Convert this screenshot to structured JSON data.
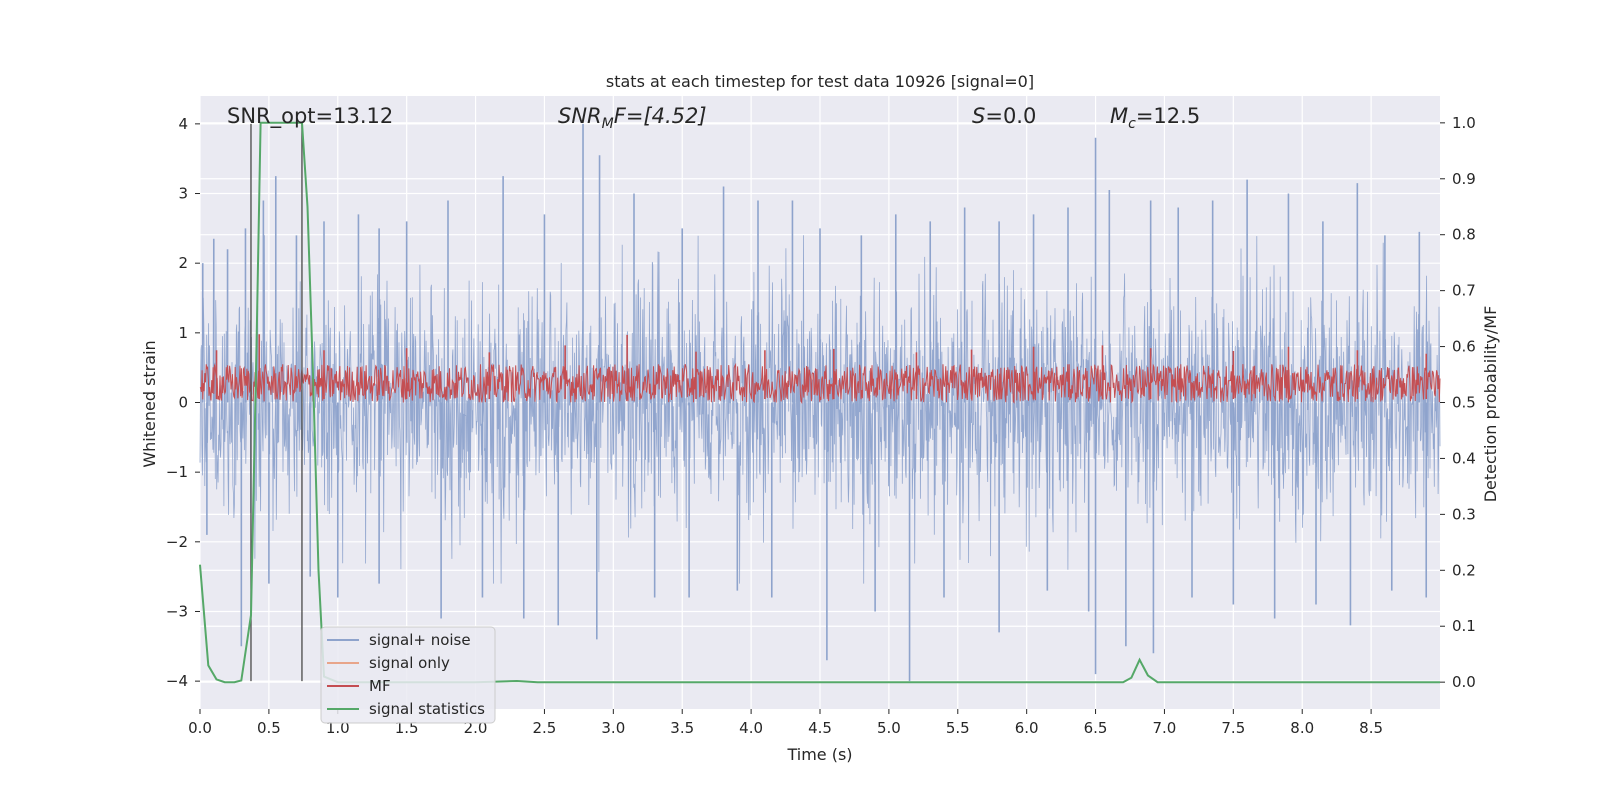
{
  "chart_data": {
    "type": "line",
    "title": "stats at each timestep for test data 10926 [signal=0]",
    "xlabel": "Time (s)",
    "ylabel": "Whitened strain",
    "ylabel_right": "Detection probability/MF",
    "xlim": [
      0,
      9.0
    ],
    "ylim": [
      -4.4,
      4.4
    ],
    "ylim_right": [
      -0.048,
      1.048
    ],
    "xticks": [
      0.0,
      0.5,
      1.0,
      1.5,
      2.0,
      2.5,
      3.0,
      3.5,
      4.0,
      4.5,
      5.0,
      5.5,
      6.0,
      6.5,
      7.0,
      7.5,
      8.0,
      8.5
    ],
    "xtick_labels": [
      "0.0",
      "0.5",
      "1.0",
      "1.5",
      "2.0",
      "2.5",
      "3.0",
      "3.5",
      "4.0",
      "4.5",
      "5.0",
      "5.5",
      "6.0",
      "6.5",
      "7.0",
      "7.5",
      "8.0",
      "8.5"
    ],
    "yticks": [
      -4,
      -3,
      -2,
      -1,
      0,
      1,
      2,
      3,
      4
    ],
    "ytick_labels": [
      "−4",
      "−3",
      "−2",
      "−1",
      "0",
      "1",
      "2",
      "3",
      "4"
    ],
    "yticks_right": [
      0.0,
      0.1,
      0.2,
      0.3,
      0.4,
      0.5,
      0.6,
      0.7,
      0.8,
      0.9,
      1.0
    ],
    "ytick_labels_right": [
      "0.0",
      "0.1",
      "0.2",
      "0.3",
      "0.4",
      "0.5",
      "0.6",
      "0.7",
      "0.8",
      "0.9",
      "1.0"
    ],
    "grid": true,
    "legend_position": "lower-left",
    "annotations": {
      "snr_opt": "SNR_opt=13.12",
      "snr_mf_main": "SNR",
      "snr_mf_sub": "M",
      "snr_mf_rest": "F=[4.52]",
      "s_var": "S",
      "s_value": "=0.0",
      "mc_var": "M",
      "mc_sub": "c",
      "mc_value": "=12.5"
    },
    "vertical_markers": [
      0.37,
      0.74
    ],
    "series": [
      {
        "name": "signal+ noise",
        "axis": "left",
        "color": "#8ea3cc",
        "peaks_positive": [
          [
            0.02,
            2.0
          ],
          [
            0.1,
            2.35
          ],
          [
            0.2,
            2.2
          ],
          [
            0.33,
            2.5
          ],
          [
            0.46,
            2.9
          ],
          [
            0.55,
            3.25
          ],
          [
            0.7,
            2.4
          ],
          [
            0.9,
            2.6
          ],
          [
            1.15,
            2.7
          ],
          [
            1.3,
            2.5
          ],
          [
            1.5,
            2.6
          ],
          [
            1.8,
            2.9
          ],
          [
            2.2,
            3.25
          ],
          [
            2.5,
            2.7
          ],
          [
            2.78,
            4.0
          ],
          [
            2.9,
            3.55
          ],
          [
            3.15,
            3.0
          ],
          [
            3.5,
            2.5
          ],
          [
            3.8,
            3.1
          ],
          [
            4.05,
            2.9
          ],
          [
            4.3,
            2.9
          ],
          [
            4.5,
            2.5
          ],
          [
            4.8,
            2.4
          ],
          [
            5.05,
            2.7
          ],
          [
            5.3,
            2.6
          ],
          [
            5.55,
            2.8
          ],
          [
            5.8,
            2.6
          ],
          [
            6.05,
            2.7
          ],
          [
            6.3,
            2.8
          ],
          [
            6.5,
            3.8
          ],
          [
            6.6,
            3.05
          ],
          [
            6.9,
            2.9
          ],
          [
            7.1,
            2.8
          ],
          [
            7.35,
            2.9
          ],
          [
            7.6,
            3.2
          ],
          [
            7.9,
            3.0
          ],
          [
            8.15,
            2.6
          ],
          [
            8.4,
            3.15
          ],
          [
            8.6,
            2.4
          ],
          [
            8.85,
            2.45
          ]
        ],
        "peaks_negative": [
          [
            0.05,
            -1.9
          ],
          [
            0.3,
            -3.5
          ],
          [
            0.5,
            -2.6
          ],
          [
            0.8,
            -2.5
          ],
          [
            1.0,
            -2.8
          ],
          [
            1.3,
            -2.6
          ],
          [
            1.75,
            -3.1
          ],
          [
            2.05,
            -2.8
          ],
          [
            2.35,
            -3.1
          ],
          [
            2.6,
            -3.2
          ],
          [
            2.88,
            -3.4
          ],
          [
            3.3,
            -2.8
          ],
          [
            3.55,
            -2.8
          ],
          [
            3.9,
            -2.7
          ],
          [
            4.15,
            -2.8
          ],
          [
            4.55,
            -3.7
          ],
          [
            4.9,
            -3.0
          ],
          [
            5.15,
            -4.0
          ],
          [
            5.4,
            -2.8
          ],
          [
            5.8,
            -3.3
          ],
          [
            6.15,
            -2.7
          ],
          [
            6.45,
            -3.0
          ],
          [
            6.5,
            -3.9
          ],
          [
            6.72,
            -3.5
          ],
          [
            6.92,
            -3.6
          ],
          [
            7.2,
            -2.8
          ],
          [
            7.5,
            -2.9
          ],
          [
            7.8,
            -3.1
          ],
          [
            8.1,
            -2.9
          ],
          [
            8.35,
            -3.2
          ],
          [
            8.65,
            -2.7
          ],
          [
            8.9,
            -2.8
          ]
        ]
      },
      {
        "name": "signal only",
        "axis": "left",
        "color": "#e8a58a"
      },
      {
        "name": "MF",
        "axis": "left",
        "color": "#c44e52",
        "band": [
          0.0,
          0.55
        ],
        "spikes": [
          [
            0.12,
            0.75
          ],
          [
            0.43,
            0.98
          ],
          [
            0.9,
            0.75
          ],
          [
            1.5,
            0.78
          ],
          [
            2.1,
            0.72
          ],
          [
            2.65,
            0.82
          ],
          [
            3.1,
            0.97
          ],
          [
            3.6,
            0.73
          ],
          [
            4.1,
            0.75
          ],
          [
            4.6,
            0.77
          ],
          [
            5.2,
            0.72
          ],
          [
            5.6,
            0.76
          ],
          [
            6.05,
            0.8
          ],
          [
            6.55,
            0.82
          ],
          [
            6.9,
            0.78
          ],
          [
            7.5,
            0.74
          ],
          [
            7.9,
            0.8
          ],
          [
            8.4,
            0.75
          ],
          [
            8.9,
            0.7
          ]
        ]
      },
      {
        "name": "signal statistics",
        "axis": "right",
        "color": "#55a868",
        "x": [
          0.0,
          0.06,
          0.12,
          0.18,
          0.25,
          0.3,
          0.37,
          0.41,
          0.44,
          0.5,
          0.6,
          0.7,
          0.74,
          0.78,
          0.82,
          0.86,
          0.9,
          1.0,
          1.5,
          2.0,
          2.3,
          2.45,
          3.0,
          4.0,
          5.0,
          6.0,
          6.5,
          6.7,
          6.76,
          6.82,
          6.88,
          6.95,
          7.2,
          8.0,
          9.0
        ],
        "y": [
          0.21,
          0.03,
          0.005,
          0.0,
          0.0,
          0.003,
          0.12,
          0.6,
          1.0,
          1.0,
          1.0,
          1.0,
          1.0,
          0.85,
          0.55,
          0.2,
          0.01,
          0.0,
          0.0,
          0.0,
          0.002,
          0.0,
          0.0,
          0.0,
          0.0,
          0.0,
          0.0,
          0.0,
          0.008,
          0.04,
          0.012,
          0.0,
          0.0,
          0.0,
          0.0
        ]
      }
    ]
  }
}
